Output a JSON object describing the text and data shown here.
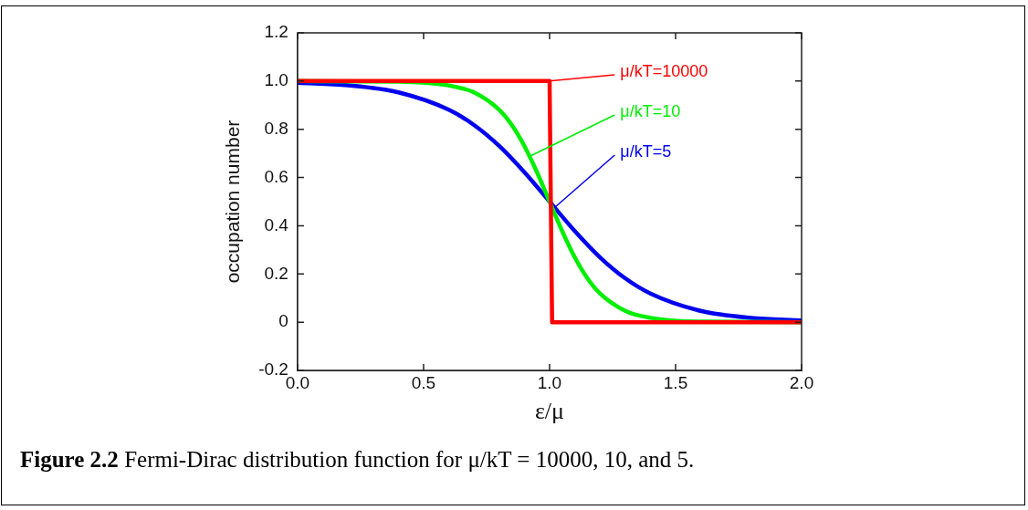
{
  "chart_data": {
    "type": "line",
    "xlabel": "ε/μ",
    "ylabel": "occupation number",
    "xlim": [
      0,
      2
    ],
    "ylim": [
      -0.2,
      1.2
    ],
    "xticks": [
      {
        "value": 0,
        "label": "0.0"
      },
      0.5,
      {
        "value": 1,
        "label": "1.0"
      },
      1.5,
      {
        "value": 2,
        "label": "2.0"
      }
    ],
    "yticks": [
      -0.2,
      0,
      0.2,
      0.4,
      0.6,
      {
        "value": 0.8,
        "label": "0.8"
      },
      {
        "value": 1,
        "label": "1.0"
      },
      1.2
    ],
    "grid": false,
    "legend": "top right",
    "marker": "none",
    "line_style": "solid",
    "series": [
      {
        "name": "μ/kT=10000",
        "color": "#ff0000",
        "x": [
          0,
          1,
          1.01,
          2
        ],
        "values": [
          1,
          1,
          0,
          0
        ]
      },
      {
        "name": "μ/kT=10",
        "color": "#00ee00",
        "x": [
          0,
          0.4,
          0.6,
          0.7,
          0.8,
          0.85,
          0.9,
          0.95,
          1,
          1.05,
          1.1,
          1.15,
          1.2,
          1.3,
          1.4,
          1.6,
          2
        ],
        "values": [
          1,
          0.998,
          0.982,
          0.953,
          0.881,
          0.818,
          0.731,
          0.622,
          0.5,
          0.378,
          0.269,
          0.182,
          0.119,
          0.047,
          0.018,
          0.002,
          0
        ]
      },
      {
        "name": "μ/kT=5",
        "color": "#0000ee",
        "x": [
          0,
          0.2,
          0.4,
          0.6,
          0.7,
          0.8,
          0.9,
          1,
          1.1,
          1.2,
          1.3,
          1.4,
          1.6,
          1.8,
          2
        ],
        "values": [
          0.993,
          0.982,
          0.953,
          0.881,
          0.818,
          0.731,
          0.622,
          0.5,
          0.378,
          0.269,
          0.182,
          0.119,
          0.047,
          0.018,
          0.007
        ]
      }
    ],
    "annotations": [
      "Figure 2.2 Fermi-Dirac distribution function for μ/kT = 10000, 10, and 5."
    ]
  }
}
